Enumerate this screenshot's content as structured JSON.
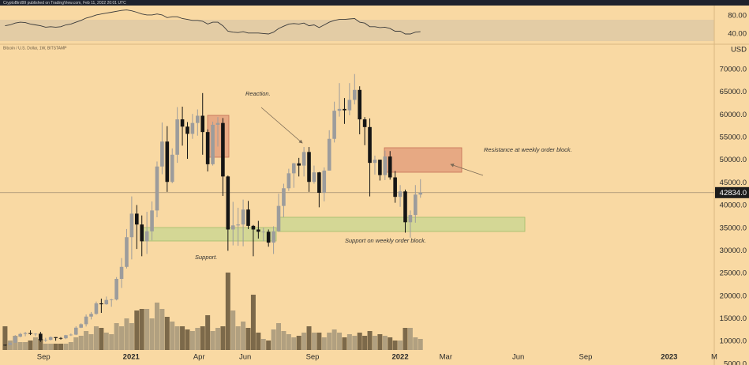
{
  "header": {
    "text": "CryptoBird99 published on TradingView.com, Feb 11, 2022 20:01 UTC"
  },
  "chart_data": [
    {
      "type": "candlestick",
      "subtitle": "Bitcoin / U.S. Dollar, 1W, BITSTAMP",
      "y_unit": "USD",
      "x": [
        0,
        1,
        2,
        3,
        4,
        5,
        6,
        7,
        8,
        9,
        10,
        11,
        12,
        13,
        14,
        15,
        16,
        17,
        18,
        19,
        20,
        21,
        22,
        23,
        24,
        25,
        26,
        27,
        28,
        29,
        30,
        31,
        32,
        33,
        34,
        35,
        36,
        37,
        38,
        39,
        40,
        41,
        42,
        43,
        44,
        45,
        46,
        47,
        48,
        49,
        50,
        51,
        52,
        53,
        54,
        55,
        56,
        57,
        58,
        59,
        60,
        61,
        62,
        63,
        64,
        65,
        66,
        67,
        68,
        69,
        70,
        71,
        72,
        73,
        74,
        75,
        76,
        77,
        78,
        79,
        80,
        81,
        82
      ],
      "open": [
        9250,
        9200,
        9700,
        11050,
        11650,
        11850,
        11650,
        11700,
        10250,
        10350,
        10950,
        10750,
        10700,
        11380,
        11500,
        13030,
        13800,
        15480,
        16080,
        18400,
        18200,
        19150,
        19250,
        23800,
        26450,
        33000,
        38200,
        35800,
        32100,
        34300,
        38900,
        48600,
        54100,
        45200,
        51200,
        59000,
        57400,
        55800,
        58200,
        59800,
        56200,
        49100,
        57800,
        58200,
        46400,
        34700,
        35600,
        35800,
        39100,
        35500,
        34700,
        34200,
        34200,
        31800,
        34300,
        39900,
        43800,
        47100,
        49300,
        48800,
        51800,
        45200,
        47300,
        42800,
        47700,
        54700,
        60900,
        61300,
        61000,
        63300,
        65500,
        59000,
        57300,
        49400,
        50100,
        46700,
        50800,
        46200,
        41900,
        43100,
        36300,
        37900,
        42400
      ],
      "high": [
        9300,
        9950,
        11400,
        11900,
        12100,
        12450,
        11800,
        12100,
        10800,
        11100,
        10950,
        10950,
        11450,
        11750,
        13350,
        14000,
        15950,
        16500,
        18800,
        19450,
        19900,
        19400,
        24200,
        28400,
        34800,
        42000,
        40100,
        37800,
        38600,
        40900,
        49700,
        58300,
        57500,
        52600,
        61700,
        61800,
        58400,
        60200,
        61200,
        64800,
        56800,
        58500,
        59500,
        59300,
        46600,
        40800,
        39500,
        41300,
        41000,
        35700,
        36600,
        35100,
        34700,
        35400,
        42600,
        44800,
        48100,
        49400,
        50500,
        52900,
        52900,
        48800,
        47400,
        48400,
        56600,
        62900,
        67000,
        63700,
        67000,
        69000,
        66300,
        59500,
        59200,
        51000,
        50100,
        52100,
        52000,
        47600,
        44500,
        43500,
        38900,
        44500,
        45800
      ],
      "low": [
        9050,
        9150,
        9700,
        10900,
        11150,
        11400,
        11150,
        9900,
        9900,
        10200,
        10150,
        10400,
        10500,
        11200,
        11400,
        12950,
        13300,
        14850,
        15900,
        16300,
        18100,
        17650,
        19050,
        21800,
        26100,
        28100,
        30400,
        28800,
        29300,
        32300,
        37400,
        46900,
        43000,
        44900,
        49400,
        53200,
        50300,
        54700,
        55400,
        51200,
        47500,
        48800,
        53000,
        42100,
        30000,
        31200,
        31100,
        31000,
        34800,
        28800,
        32700,
        32100,
        30900,
        29300,
        34200,
        37400,
        43200,
        43900,
        46400,
        46400,
        43000,
        44800,
        39600,
        40900,
        47700,
        53900,
        59600,
        58000,
        59900,
        62300,
        55700,
        53300,
        42000,
        46800,
        45500,
        45600,
        45700,
        40600,
        39700,
        34000,
        32900,
        36200,
        41700
      ],
      "close": [
        9200,
        9700,
        11050,
        11650,
        11850,
        11650,
        11700,
        10250,
        10350,
        10950,
        10750,
        10700,
        11380,
        11500,
        13030,
        13800,
        15480,
        16080,
        18400,
        18200,
        19150,
        19250,
        23800,
        26450,
        33000,
        38200,
        35800,
        32100,
        34300,
        38900,
        48600,
        54100,
        45200,
        51200,
        59000,
        57400,
        55800,
        58200,
        59800,
        56200,
        49100,
        57800,
        58200,
        46400,
        34700,
        35600,
        35800,
        39100,
        35500,
        34700,
        34200,
        34200,
        31800,
        34300,
        39900,
        43800,
        47100,
        49300,
        48800,
        51800,
        45200,
        47300,
        42800,
        47700,
        54700,
        60900,
        61300,
        61000,
        63300,
        65500,
        59000,
        57300,
        49400,
        50100,
        46700,
        50800,
        46200,
        41900,
        43100,
        36300,
        37900,
        42400,
        42834
      ],
      "volume": [
        30,
        12,
        18,
        10,
        10,
        12,
        16,
        14,
        8,
        8,
        8,
        8,
        8,
        10,
        16,
        18,
        24,
        20,
        30,
        28,
        22,
        20,
        34,
        30,
        40,
        34,
        50,
        52,
        52,
        40,
        60,
        52,
        42,
        36,
        30,
        30,
        26,
        24,
        28,
        30,
        44,
        24,
        28,
        30,
        98,
        50,
        30,
        36,
        28,
        70,
        22,
        14,
        12,
        26,
        34,
        24,
        20,
        16,
        18,
        22,
        30,
        22,
        22,
        16,
        22,
        26,
        22,
        16,
        20,
        18,
        22,
        18,
        24,
        18,
        20,
        18,
        16,
        12,
        12,
        28,
        28,
        16,
        14
      ],
      "up_color": "#9c9c9c",
      "down_color": "#151515",
      "volume_up_color": "#a8997c",
      "volume_down_color": "#6e5c40",
      "xlim": [
        -1,
        140
      ],
      "xticks": [
        {
          "value": 7.6,
          "label": "Sep"
        },
        {
          "value": 24.9,
          "label": "2021"
        },
        {
          "value": 38.3,
          "label": "Apr"
        },
        {
          "value": 47.4,
          "label": "Jun"
        },
        {
          "value": 60.7,
          "label": "Sep"
        },
        {
          "value": 78,
          "label": "2022"
        },
        {
          "value": 87,
          "label": "Mar"
        },
        {
          "value": 101.3,
          "label": "Jun"
        },
        {
          "value": 114.6,
          "label": "Sep"
        },
        {
          "value": 131.1,
          "label": "2023"
        },
        {
          "value": 140,
          "label": "M"
        }
      ],
      "ylim": [
        4800,
        75400
      ],
      "yticks": [
        {
          "value": 5000,
          "label": "5000.0"
        },
        {
          "value": 10000,
          "label": "10000.0"
        },
        {
          "value": 15000,
          "label": "15000.0"
        },
        {
          "value": 20000,
          "label": "20000.0"
        },
        {
          "value": 25000,
          "label": "25000.0"
        },
        {
          "value": 30000,
          "label": "30000.0"
        },
        {
          "value": 35000,
          "label": "35000.0"
        },
        {
          "value": 40000,
          "label": "40000.0"
        },
        {
          "value": 45000,
          "label": "45000.0"
        },
        {
          "value": 50000,
          "label": "50000.0"
        },
        {
          "value": 55000,
          "label": "55000.0"
        },
        {
          "value": 60000,
          "label": "60000.0"
        },
        {
          "value": 65000,
          "label": "65000.0"
        },
        {
          "value": 70000,
          "label": "70000.0"
        }
      ],
      "last_price": {
        "value": 42834,
        "label": "42834.0"
      },
      "annotations": [
        "Reaction.",
        "Resistance at weekly order block.",
        "Support on weekly order block.",
        "Support."
      ]
    },
    {
      "type": "line",
      "x": [
        0,
        1,
        2,
        3,
        4,
        5,
        6,
        7,
        8,
        9,
        10,
        11,
        12,
        13,
        14,
        15,
        16,
        17,
        18,
        19,
        20,
        21,
        22,
        23,
        24,
        25,
        26,
        27,
        28,
        29,
        30,
        31,
        32,
        33,
        34,
        35,
        36,
        37,
        38,
        39,
        40,
        41,
        42,
        43,
        44,
        45,
        46,
        47,
        48,
        49,
        50,
        51,
        52,
        53,
        54,
        55,
        56,
        57,
        58,
        59,
        60,
        61,
        62,
        63,
        64,
        65,
        66,
        67,
        68,
        69,
        70,
        71,
        72,
        73,
        74,
        75,
        76,
        77,
        78,
        79,
        80,
        81,
        82
      ],
      "values": [
        58,
        60,
        64,
        66,
        65,
        62,
        60,
        58,
        55,
        56,
        55,
        56,
        60,
        62,
        66,
        70,
        75,
        78,
        82,
        84,
        86,
        88,
        90,
        92,
        93,
        91,
        88,
        84,
        82,
        82,
        84,
        82,
        76,
        78,
        78,
        74,
        72,
        70,
        70,
        68,
        62,
        66,
        66,
        58,
        46,
        44,
        43,
        45,
        42,
        42,
        42,
        41,
        40,
        44,
        52,
        57,
        62,
        63,
        62,
        64,
        58,
        60,
        54,
        60,
        66,
        70,
        72,
        72,
        73,
        74,
        66,
        64,
        56,
        56,
        54,
        55,
        52,
        46,
        46,
        40,
        40,
        44,
        45
      ],
      "color": "#3a3a3a",
      "ylim": [
        19,
        101
      ],
      "yticks": [
        {
          "value": 80,
          "label": "80.00"
        },
        {
          "value": 40,
          "label": "40.00"
        }
      ]
    }
  ]
}
